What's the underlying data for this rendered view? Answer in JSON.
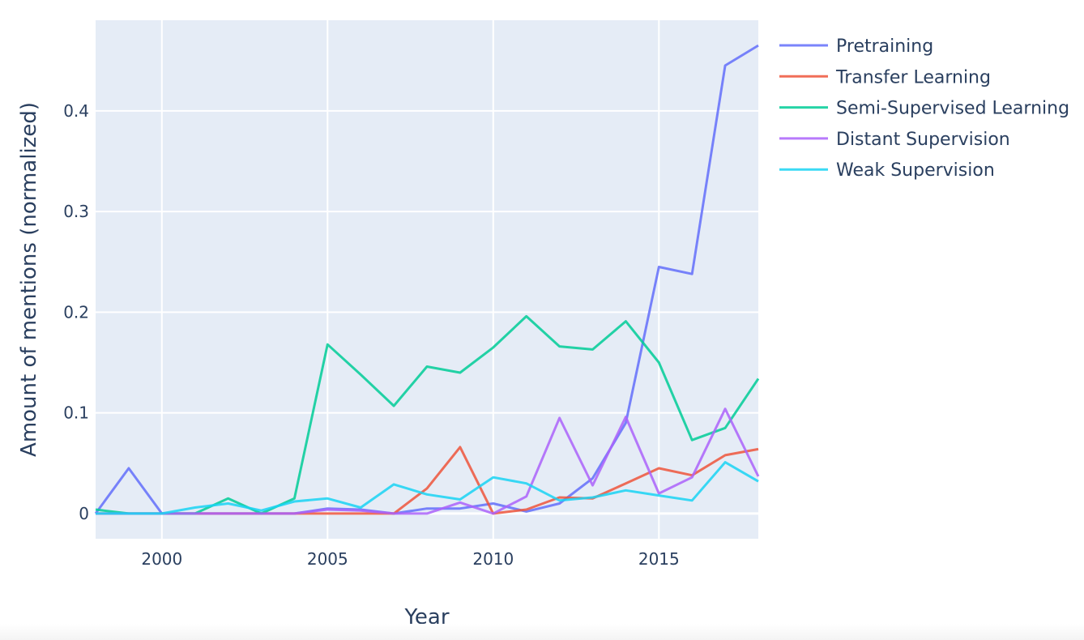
{
  "chart_data": {
    "type": "line",
    "title": "",
    "xlabel": "Year",
    "ylabel": "Amount of mentions (normalized)",
    "xlim": [
      1998,
      2018
    ],
    "ylim": [
      -0.025,
      0.49
    ],
    "x_ticks": [
      2000,
      2005,
      2010,
      2015
    ],
    "y_ticks": [
      0,
      0.1,
      0.2,
      0.3,
      0.4
    ],
    "y_tick_labels": [
      "0",
      "0.1",
      "0.2",
      "0.3",
      "0.4"
    ],
    "grid": true,
    "legend_position": "top-right, outside plot",
    "background_color": "#e5ecf6",
    "x": [
      1998,
      1999,
      2000,
      2001,
      2002,
      2003,
      2004,
      2005,
      2006,
      2007,
      2008,
      2009,
      2010,
      2011,
      2012,
      2013,
      2014,
      2015,
      2016,
      2017,
      2018
    ],
    "series": [
      {
        "name": "Pretraining",
        "color": "#636efa",
        "values": [
          0,
          0.045,
          0,
          0,
          0,
          0,
          0,
          0.005,
          0.004,
          0,
          0.005,
          0.005,
          0.01,
          0.002,
          0.01,
          0.035,
          0.09,
          0.245,
          0.238,
          0.445,
          0.465
        ]
      },
      {
        "name": "Transfer Learning",
        "color": "#ef553b",
        "values": [
          0,
          0,
          0,
          0,
          0,
          0,
          0,
          0,
          0,
          0,
          0.025,
          0.066,
          0,
          0.004,
          0.016,
          0.015,
          0.03,
          0.045,
          0.038,
          0.058,
          0.064
        ]
      },
      {
        "name": "Semi-Supervised Learning",
        "color": "#00cc96",
        "values": [
          0.004,
          0,
          0,
          0,
          0.015,
          0,
          0.015,
          0.168,
          0.138,
          0.107,
          0.146,
          0.14,
          0.165,
          0.196,
          0.166,
          0.163,
          0.191,
          0.15,
          0.073,
          0.085,
          0.134
        ]
      },
      {
        "name": "Distant Supervision",
        "color": "#ab63fa",
        "values": [
          0,
          0,
          0,
          0,
          0,
          0,
          0,
          0.004,
          0.003,
          0,
          0,
          0.011,
          0,
          0.017,
          0.095,
          0.028,
          0.096,
          0.02,
          0.036,
          0.104,
          0.037
        ]
      },
      {
        "name": "Weak Supervision",
        "color": "#19d3f3",
        "values": [
          0,
          0,
          0,
          0.006,
          0.01,
          0.003,
          0.012,
          0.015,
          0.006,
          0.029,
          0.019,
          0.014,
          0.036,
          0.03,
          0.013,
          0.016,
          0.023,
          0.018,
          0.013,
          0.051,
          0.032
        ]
      }
    ]
  }
}
